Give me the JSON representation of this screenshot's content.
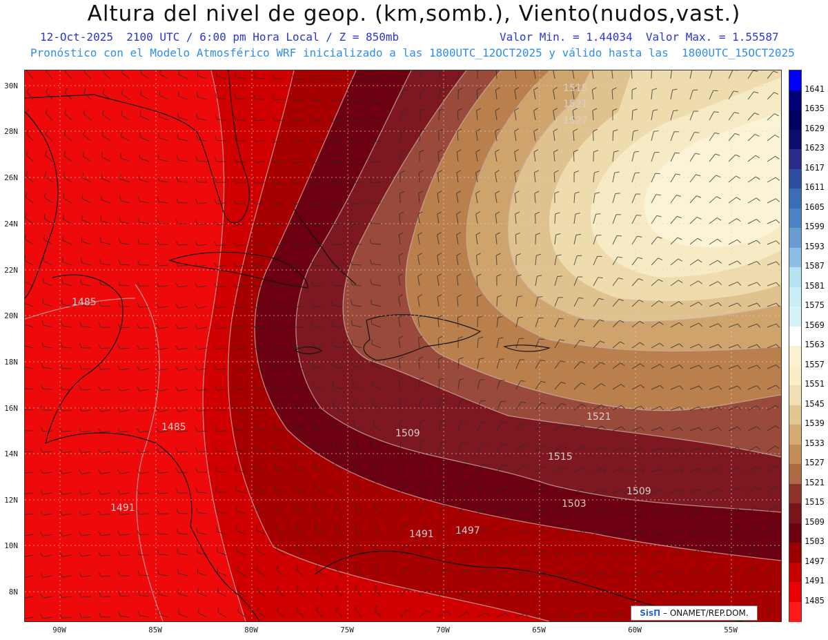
{
  "header": {
    "title": "Altura del nivel de geop. (km,somb.), Viento(nudos,vast.)",
    "datetime_line": "12-Oct-2025  2100 UTC / 6:00 pm Hora Local / Z = 850mb",
    "minmax_line": "Valor Min. = 1.44034  Valor Max. = 1.55587",
    "forecast_line": "Pronóstico con el Modelo Atmosférico WRF inicializado a las 1800UTC_12OCT2025 y válido hasta las  1800UTC_15OCT2025"
  },
  "axes": {
    "lat_labels": [
      "30N",
      "28N",
      "26N",
      "24N",
      "22N",
      "20N",
      "18N",
      "16N",
      "14N",
      "12N",
      "10N",
      "8N"
    ],
    "lon_labels": [
      "90W",
      "85W",
      "80W",
      "75W",
      "70W",
      "65W",
      "60W",
      "55W"
    ]
  },
  "contour_labels": [
    "1515",
    "1521",
    "1527",
    "1485",
    "1485",
    "1509",
    "1515",
    "1509",
    "1503",
    "1491",
    "1491",
    "1497",
    "1521"
  ],
  "legend": {
    "levels": [
      "1641",
      "1635",
      "1629",
      "1623",
      "1617",
      "1611",
      "1605",
      "1599",
      "1593",
      "1587",
      "1581",
      "1575",
      "1569",
      "1563",
      "1557",
      "1551",
      "1545",
      "1539",
      "1533",
      "1527",
      "1521",
      "1515",
      "1509",
      "1503",
      "1497",
      "1491",
      "1485"
    ],
    "colors": [
      "#0000ff",
      "#00007a",
      "#000060",
      "#0c0c6e",
      "#2a2a88",
      "#2e4ea0",
      "#3c6cb6",
      "#4f82c4",
      "#6a9ccf",
      "#8cbfe4",
      "#b6e3ef",
      "#c9eef5",
      "#d6f4f8",
      "#ffffff",
      "#fbf1d0",
      "#f9eec6",
      "#f0deb4",
      "#e2c694",
      "#d4aa73",
      "#c28d58",
      "#ad6a45",
      "#8c3228",
      "#79141b",
      "#6b0011",
      "#9b0000",
      "#c80000",
      "#ea0000",
      "#ff1a1a"
    ]
  },
  "credit": {
    "logo": "SisΠ",
    "text": " – ONAMET/REP.DOM."
  }
}
